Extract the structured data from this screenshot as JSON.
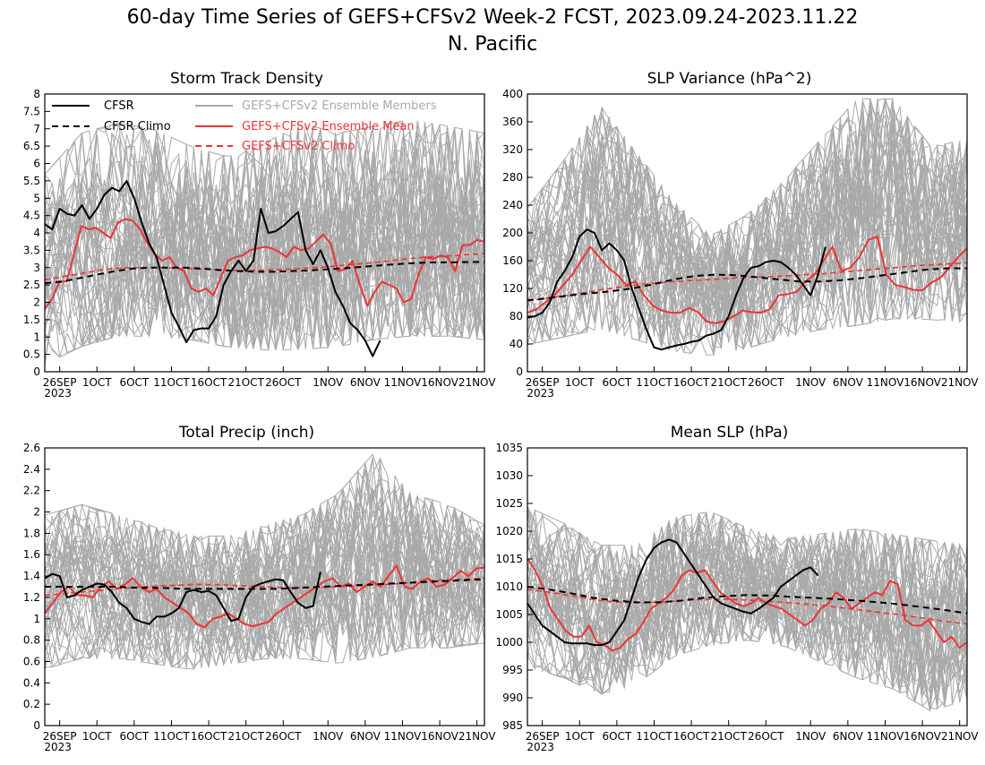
{
  "title": "60-day Time Series of GEFS+CFSv2 Week-2 FCST, 2023.09.24-2023.11.22",
  "subtitle": "N. Pacific",
  "colors": {
    "cfsr": "#000000",
    "members": "#a9a9a9",
    "ensemble_mean": "#ee3333",
    "gefs_climo": "#ee3333",
    "cfsr_climo": "#000000"
  },
  "legend": [
    {
      "label": "CFSR",
      "color": "#000000",
      "dash": false
    },
    {
      "label": "CFSR Climo",
      "color": "#000000",
      "dash": true
    },
    {
      "label": "GEFS+CFSv2 Ensemble Members",
      "color": "#a9a9a9",
      "dash": false
    },
    {
      "label": "GEFS+CFSv2 Ensemble Mean",
      "color": "#ee3333",
      "dash": false
    },
    {
      "label": "GEFS+CFSv2 Climo",
      "color": "#ee3333",
      "dash": true
    }
  ],
  "chart_data": [
    {
      "type": "line",
      "title": "Storm Track Density",
      "x_ticks": [
        "26SEP",
        "1OCT",
        "6OCT",
        "11OCT",
        "16OCT",
        "21OCT",
        "26OCT",
        "1NOV",
        "6NOV",
        "11NOV",
        "16NOV",
        "21NOV"
      ],
      "x_year": "2023",
      "ylim": [
        0,
        8
      ],
      "y_ticks": [
        "0",
        "0.5",
        "1",
        "1.5",
        "2",
        "2.5",
        "3",
        "3.5",
        "4",
        "4.5",
        "5",
        "5.5",
        "6",
        "6.5",
        "7",
        "7.5",
        "8"
      ],
      "members_envelope": {
        "lower": [
          0.1,
          0.6,
          0.9,
          0.9,
          0.8,
          0.6,
          0.5,
          0.5,
          0.6,
          0.8,
          0.9,
          0.9,
          0.8
        ],
        "upper": [
          5.8,
          7.0,
          7.3,
          7.1,
          6.6,
          6.3,
          6.7,
          7.3,
          7.0,
          7.2,
          7.4,
          7.2,
          7.0
        ]
      },
      "series": [
        {
          "name": "CFSR",
          "day_start": 0,
          "values": [
            4.25,
            4.1,
            4.7,
            4.55,
            4.5,
            4.8,
            4.4,
            4.7,
            5.1,
            5.3,
            5.2,
            5.5,
            5.0,
            4.3,
            3.7,
            3.3,
            2.5,
            1.7,
            1.3,
            0.85,
            1.2,
            1.25,
            1.25,
            1.6,
            2.5,
            2.9,
            3.2,
            2.9,
            3.2,
            4.7,
            4.0,
            4.05,
            4.2,
            4.4,
            4.6,
            3.5,
            3.1,
            3.5,
            3.0,
            2.3,
            1.9,
            1.4,
            1.2,
            0.9,
            0.45,
            0.9
          ]
        },
        {
          "name": "CFSR Climo",
          "day_start": 0,
          "values": [
            2.55,
            2.6,
            2.7,
            2.8,
            2.9,
            2.97,
            3.0,
            3.0,
            3.0,
            2.97,
            2.93,
            2.9,
            2.88,
            2.88,
            2.9,
            2.92,
            2.95,
            2.98,
            3.02,
            3.06,
            3.1,
            3.13,
            3.15,
            3.15,
            3.16,
            3.17
          ]
        },
        {
          "name": "GEFS+CFSv2 Ensemble Mean",
          "day_start": 0,
          "values": [
            1.8,
            2.1,
            2.6,
            2.6,
            3.4,
            4.2,
            4.1,
            4.15,
            4.0,
            3.85,
            4.3,
            4.4,
            4.35,
            4.1,
            3.7,
            3.4,
            3.2,
            3.3,
            3.0,
            2.9,
            2.4,
            2.3,
            2.4,
            2.2,
            2.7,
            3.2,
            3.3,
            3.35,
            3.5,
            3.55,
            3.6,
            3.55,
            3.45,
            3.3,
            3.6,
            3.5,
            3.55,
            3.75,
            3.95,
            3.7,
            2.9,
            2.95,
            3.2,
            2.5,
            1.9,
            2.3,
            2.6,
            2.5,
            2.4,
            2.0,
            2.1,
            2.8,
            3.3,
            3.25,
            3.35,
            3.3,
            2.9,
            3.65,
            3.65,
            3.8,
            3.75
          ]
        },
        {
          "name": "GEFS+CFSv2 Climo",
          "day_start": 0,
          "values": [
            2.65,
            2.75,
            2.85,
            2.95,
            3.0,
            3.0,
            3.0,
            2.97,
            2.95,
            2.93,
            2.92,
            2.93,
            2.95,
            2.98,
            3.02,
            3.07,
            3.12,
            3.18,
            3.24,
            3.3,
            3.33,
            3.37,
            3.4
          ]
        }
      ]
    },
    {
      "type": "line",
      "title": "SLP Variance (hPa^2)",
      "x_ticks": [
        "26SEP",
        "1OCT",
        "6OCT",
        "11OCT",
        "16OCT",
        "21OCT",
        "26OCT",
        "1NOV",
        "6NOV",
        "11NOV",
        "16NOV",
        "21NOV"
      ],
      "x_year": "2023",
      "ylim": [
        0,
        400
      ],
      "y_ticks": [
        "0",
        "40",
        "80",
        "120",
        "160",
        "200",
        "240",
        "280",
        "320",
        "360",
        "400"
      ],
      "members_envelope": {
        "lower": [
          35,
          45,
          55,
          40,
          25,
          20,
          30,
          45,
          55,
          60,
          70,
          70,
          65
        ],
        "upper": [
          240,
          310,
          390,
          320,
          250,
          200,
          230,
          280,
          340,
          400,
          400,
          330,
          340
        ]
      },
      "series": [
        {
          "name": "CFSR",
          "day_start": 0,
          "values": [
            78,
            80,
            85,
            100,
            130,
            145,
            165,
            195,
            205,
            200,
            175,
            185,
            175,
            160,
            120,
            90,
            60,
            35,
            32,
            35,
            38,
            40,
            43,
            45,
            52,
            55,
            60,
            80,
            110,
            135,
            150,
            152,
            158,
            160,
            158,
            150,
            140,
            125,
            110,
            140,
            180
          ]
        },
        {
          "name": "CFSR Climo",
          "day_start": 0,
          "values": [
            103,
            106,
            110,
            113,
            116,
            120,
            126,
            133,
            138,
            140,
            139,
            136,
            133,
            130,
            130,
            132,
            135,
            139,
            143,
            147,
            149,
            149
          ]
        },
        {
          "name": "GEFS+CFSv2 Ensemble Mean",
          "day_start": 0,
          "values": [
            85,
            90,
            100,
            110,
            125,
            140,
            160,
            180,
            165,
            150,
            140,
            125,
            130,
            110,
            95,
            88,
            85,
            85,
            92,
            86,
            72,
            70,
            73,
            80,
            88,
            86,
            85,
            90,
            110,
            112,
            115,
            130,
            140,
            160,
            180,
            145,
            150,
            165,
            190,
            195,
            140,
            125,
            122,
            118,
            117,
            128,
            135,
            150,
            165,
            178
          ]
        },
        {
          "name": "GEFS+CFSv2 Climo",
          "day_start": 0,
          "values": [
            102,
            107,
            112,
            118,
            123,
            127,
            130,
            132,
            134,
            136,
            137,
            139,
            141,
            144,
            147,
            150,
            153,
            155,
            157
          ]
        }
      ]
    },
    {
      "type": "line",
      "title": "Total Precip (inch)",
      "x_ticks": [
        "26SEP",
        "1OCT",
        "6OCT",
        "11OCT",
        "16OCT",
        "21OCT",
        "26OCT",
        "1NOV",
        "6NOV",
        "11NOV",
        "16NOV",
        "21NOV"
      ],
      "x_year": "2023",
      "ylim": [
        0,
        2.6
      ],
      "y_ticks": [
        "0",
        "0.2",
        "0.4",
        "0.6",
        "0.8",
        "1",
        "1.2",
        "1.4",
        "1.6",
        "1.8",
        "2",
        "2.2",
        "2.4",
        "2.6"
      ],
      "members_envelope": {
        "lower": [
          0.5,
          0.6,
          0.6,
          0.55,
          0.5,
          0.55,
          0.6,
          0.6,
          0.55,
          0.6,
          0.7,
          0.7,
          0.75
        ],
        "upper": [
          2.0,
          2.1,
          2.0,
          1.9,
          1.8,
          1.8,
          1.9,
          2.0,
          2.2,
          2.6,
          2.2,
          2.1,
          1.9
        ]
      },
      "series": [
        {
          "name": "CFSR",
          "day_start": 0,
          "values": [
            1.38,
            1.42,
            1.4,
            1.2,
            1.22,
            1.27,
            1.3,
            1.33,
            1.32,
            1.25,
            1.15,
            1.1,
            1.0,
            0.97,
            0.95,
            1.02,
            1.02,
            1.05,
            1.1,
            1.25,
            1.27,
            1.25,
            1.26,
            1.22,
            1.1,
            0.98,
            1.0,
            1.2,
            1.3,
            1.33,
            1.35,
            1.37,
            1.36,
            1.25,
            1.15,
            1.1,
            1.12,
            1.44
          ]
        },
        {
          "name": "CFSR Climo",
          "day_start": 0,
          "values": [
            1.3,
            1.3,
            1.3,
            1.3,
            1.29,
            1.29,
            1.28,
            1.28,
            1.28,
            1.28,
            1.28,
            1.29,
            1.3,
            1.31,
            1.32,
            1.33,
            1.34,
            1.35,
            1.36,
            1.37
          ]
        },
        {
          "name": "GEFS+CFSv2 Ensemble Mean",
          "day_start": 0,
          "values": [
            1.05,
            1.15,
            1.25,
            1.3,
            1.22,
            1.22,
            1.2,
            1.3,
            1.35,
            1.28,
            1.32,
            1.38,
            1.3,
            1.25,
            1.28,
            1.2,
            1.15,
            1.1,
            1.05,
            0.95,
            0.92,
            1.0,
            1.02,
            1.05,
            1.0,
            0.95,
            0.93,
            0.95,
            0.97,
            1.05,
            1.1,
            1.15,
            1.2,
            1.25,
            1.3,
            1.35,
            1.38,
            1.3,
            1.33,
            1.25,
            1.3,
            1.35,
            1.3,
            1.4,
            1.5,
            1.3,
            1.28,
            1.35,
            1.38,
            1.3,
            1.32,
            1.38,
            1.45,
            1.4,
            1.47,
            1.48
          ]
        },
        {
          "name": "GEFS+CFSv2 Climo",
          "day_start": 0,
          "values": [
            1.22,
            1.24,
            1.26,
            1.28,
            1.3,
            1.31,
            1.32,
            1.32,
            1.31,
            1.3,
            1.29,
            1.29,
            1.3,
            1.31,
            1.32,
            1.34,
            1.36,
            1.37,
            1.38
          ]
        }
      ]
    },
    {
      "type": "line",
      "title": "Mean SLP (hPa)",
      "x_ticks": [
        "26SEP",
        "1OCT",
        "6OCT",
        "11OCT",
        "16OCT",
        "21OCT",
        "26OCT",
        "1NOV",
        "6NOV",
        "11NOV",
        "16NOV",
        "21NOV"
      ],
      "x_year": "2023",
      "ylim": [
        985,
        1035
      ],
      "y_ticks": [
        "985",
        "990",
        "995",
        "1000",
        "1005",
        "1010",
        "1015",
        "1020",
        "1025",
        "1030",
        "1035"
      ],
      "members_envelope": {
        "lower": [
          995,
          993,
          990,
          992,
          997,
          999,
          1000,
          999,
          996,
          993,
          991,
          987,
          989
        ],
        "upper": [
          1025,
          1022,
          1018,
          1018,
          1023,
          1024,
          1021,
          1019,
          1020,
          1021,
          1020,
          1019,
          1018
        ]
      },
      "series": [
        {
          "name": "CFSR",
          "day_start": 0,
          "values": [
            1007,
            1005,
            1003,
            1002,
            1001,
            1000,
            999.8,
            999.8,
            999.8,
            999.5,
            999.5,
            1000,
            1002,
            1004,
            1008,
            1012,
            1015,
            1017,
            1018,
            1018.5,
            1018,
            1016,
            1014,
            1012,
            1010,
            1008,
            1007,
            1006.5,
            1006,
            1005.5,
            1005.2,
            1006,
            1007,
            1008,
            1010,
            1011,
            1012,
            1013,
            1013.5,
            1012
          ]
        },
        {
          "name": "CFSR Climo",
          "day_start": 0,
          "values": [
            1010,
            1009.5,
            1008.8,
            1008,
            1007.5,
            1007.2,
            1007.2,
            1007.5,
            1008,
            1008.3,
            1008.5,
            1008.4,
            1008.2,
            1008,
            1007.8,
            1007.5,
            1007.2,
            1006.8,
            1006.3,
            1005.8,
            1005.2
          ]
        },
        {
          "name": "GEFS+CFSv2 Ensemble Mean",
          "day_start": 0,
          "values": [
            1015,
            1013,
            1010,
            1006,
            1004,
            1002,
            1001,
            1001,
            1003,
            1000,
            999.5,
            998.5,
            999,
            1000.5,
            1001.5,
            1003.5,
            1006,
            1007,
            1008,
            1009.5,
            1012,
            1013,
            1012.5,
            1013,
            1011,
            1009,
            1008,
            1007,
            1006.5,
            1007,
            1008,
            1007,
            1006.5,
            1006,
            1005,
            1004,
            1003,
            1004,
            1006,
            1007,
            1009,
            1008,
            1006,
            1007,
            1008,
            1009,
            1008.5,
            1011,
            1010.5,
            1004,
            1003,
            1003,
            1004,
            1002,
            1000,
            1001,
            999,
            1000
          ]
        },
        {
          "name": "GEFS+CFSv2 Climo",
          "day_start": 0,
          "values": [
            1009.5,
            1009,
            1008.3,
            1007.6,
            1007.2,
            1007.1,
            1007.3,
            1007.6,
            1007.8,
            1007.7,
            1007.5,
            1007.2,
            1006.9,
            1006.5,
            1006,
            1005.5,
            1005,
            1004.4,
            1003.8,
            1003.3
          ]
        }
      ]
    }
  ]
}
